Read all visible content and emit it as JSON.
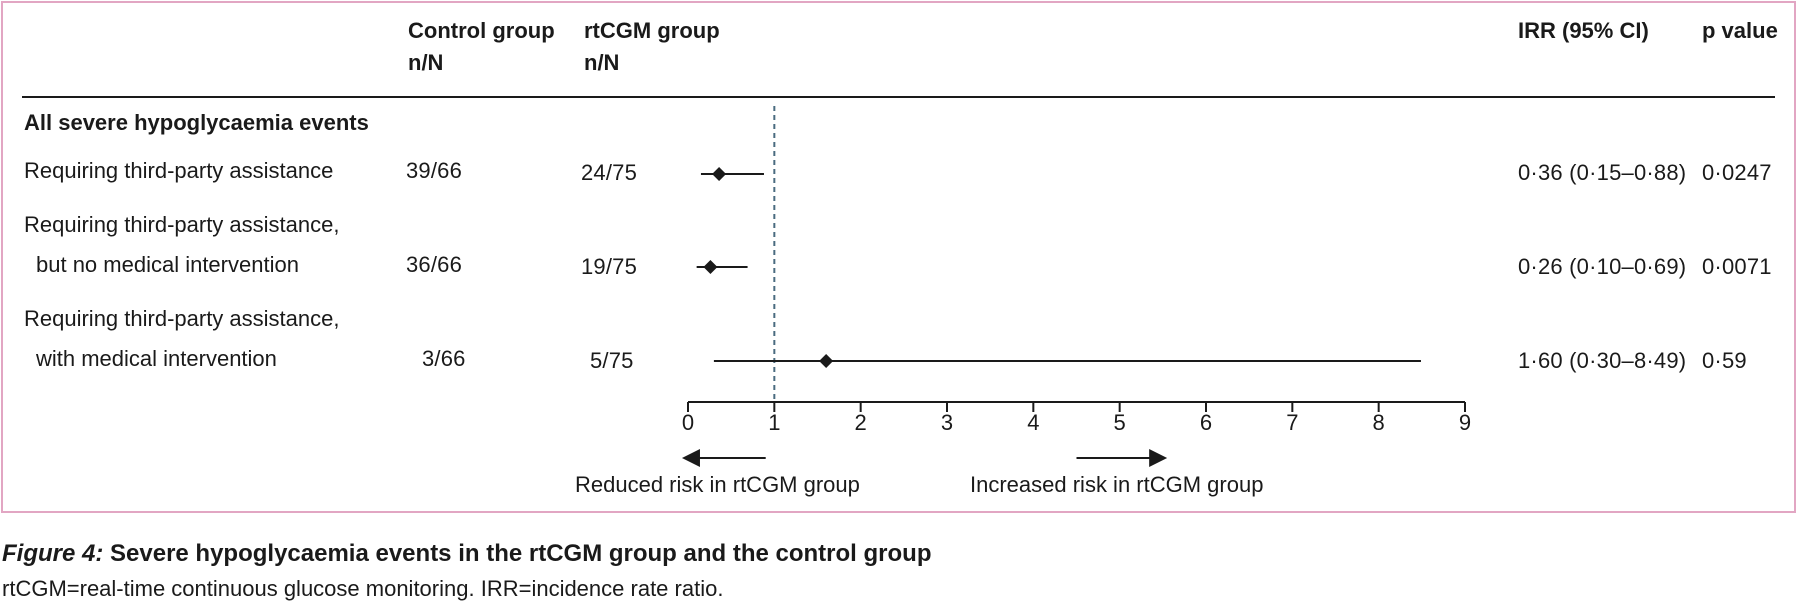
{
  "header": {
    "control_line1": "Control group",
    "control_line2": "n/N",
    "rtcgm_line1": "rtCGM group",
    "rtcgm_line2": "n/N",
    "irr": "IRR (95% CI)",
    "pvalue": "p value"
  },
  "section_title": "All severe hypoglycaemia events",
  "rows": [
    {
      "label_line1": "Requiring third-party assistance",
      "label_line2": "",
      "control": "39/66",
      "rtcgm": "24/75",
      "irr_text": "0·36 (0·15–0·88)",
      "p": "0·0247"
    },
    {
      "label_line1": "Requiring third-party assistance,",
      "label_line2": "but no medical intervention",
      "control": "36/66",
      "rtcgm": "19/75",
      "irr_text": "0·26 (0·10–0·69)",
      "p": "0·0071"
    },
    {
      "label_line1": "Requiring third-party assistance,",
      "label_line2": "with medical intervention",
      "control": "3/66",
      "rtcgm": "5/75",
      "irr_text": "1·60 (0·30–8·49)",
      "p": "0·59"
    }
  ],
  "arrows": {
    "left_label": "Reduced risk in rtCGM group",
    "right_label": "Increased risk in rtCGM group"
  },
  "caption": {
    "label": "Figure 4:",
    "title": " Severe hypoglycaemia events in the rtCGM group and the control group",
    "note": "rtCGM=real-time continuous glucose monitoring. IRR=incidence rate ratio."
  },
  "chart_data": {
    "type": "forest",
    "xlim": [
      0,
      9
    ],
    "xticks": [
      0,
      1,
      2,
      3,
      4,
      5,
      6,
      7,
      8,
      9
    ],
    "xtick_labels": [
      "0",
      "1",
      "2",
      "3",
      "4",
      "5",
      "6",
      "7",
      "8",
      "9"
    ],
    "reference_line": 1,
    "series": [
      {
        "name": "Requiring third-party assistance",
        "estimate": 0.36,
        "lower": 0.15,
        "upper": 0.88
      },
      {
        "name": "Requiring third-party assistance, but no medical intervention",
        "estimate": 0.26,
        "lower": 0.1,
        "upper": 0.69
      },
      {
        "name": "Requiring third-party assistance, with medical intervention",
        "estimate": 1.6,
        "lower": 0.3,
        "upper": 8.49
      }
    ]
  }
}
